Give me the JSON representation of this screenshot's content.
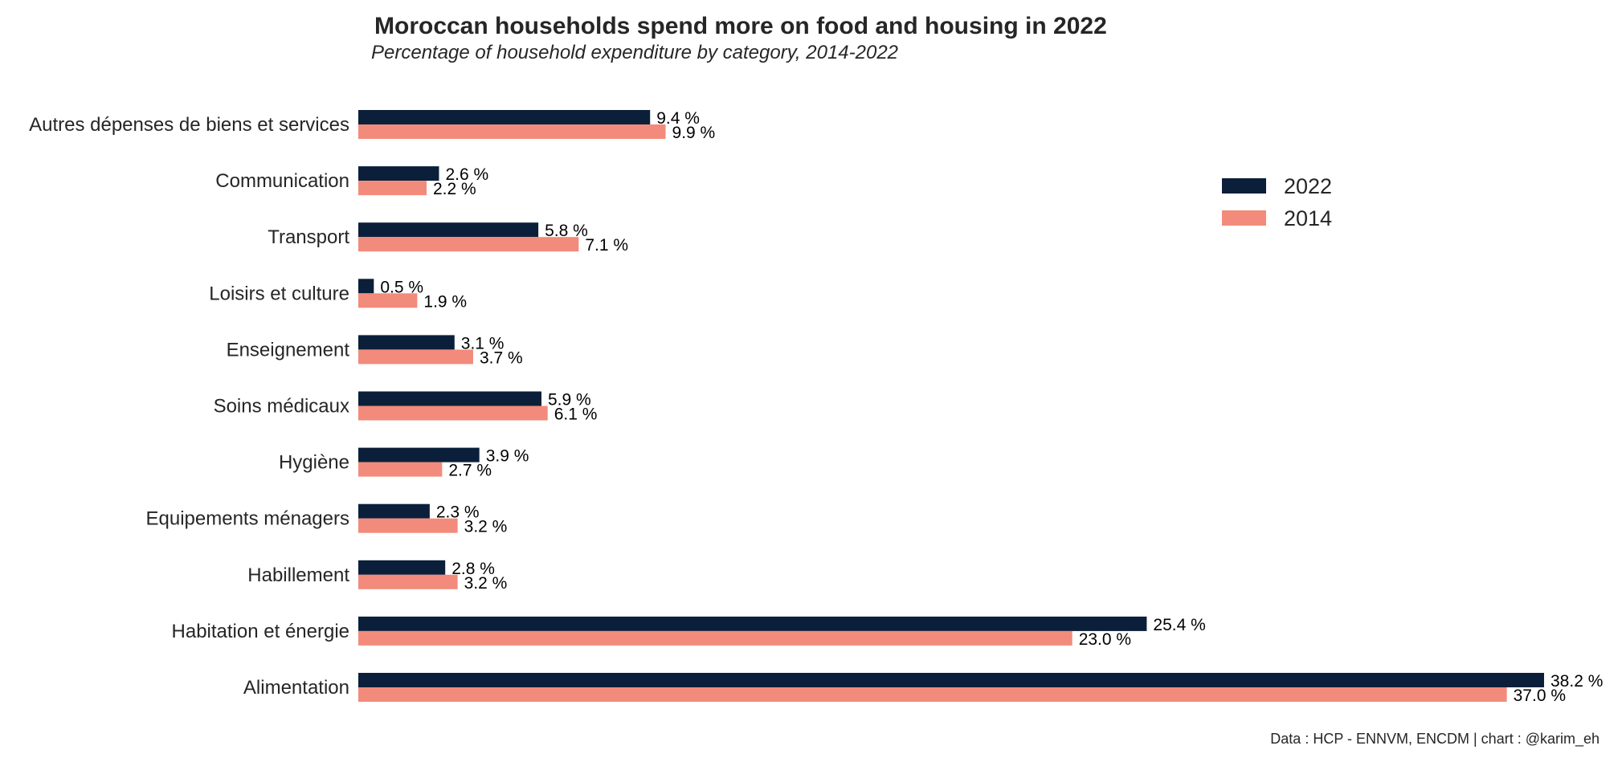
{
  "chart_data": {
    "type": "bar",
    "orientation": "horizontal",
    "title": "Moroccan households spend more on food and housing in 2022",
    "subtitle": "Percentage of household expenditure by category, 2014-2022",
    "source_note": "Data : HCP - ENNVM, ENCDM | chart : @karim_eh",
    "categories": [
      "Autres dépenses de biens et services",
      "Communication",
      "Transport",
      "Loisirs et culture",
      "Enseignement",
      "Soins médicaux",
      "Hygiène",
      "Equipements ménagers",
      "Habillement",
      "Habitation et énergie",
      "Alimentation"
    ],
    "series": [
      {
        "name": "2022",
        "color": "#0b1f3a",
        "values": [
          9.4,
          2.6,
          5.8,
          0.5,
          3.1,
          5.9,
          3.9,
          2.3,
          2.8,
          25.4,
          38.2
        ]
      },
      {
        "name": "2014",
        "color": "#f28b7b",
        "values": [
          9.9,
          2.2,
          7.1,
          1.9,
          3.7,
          6.1,
          2.7,
          3.2,
          3.2,
          23.0,
          37.0
        ]
      }
    ],
    "value_suffix": " %",
    "xlim": [
      0,
      38.2
    ],
    "grid": false,
    "legend_position": "top-right"
  }
}
